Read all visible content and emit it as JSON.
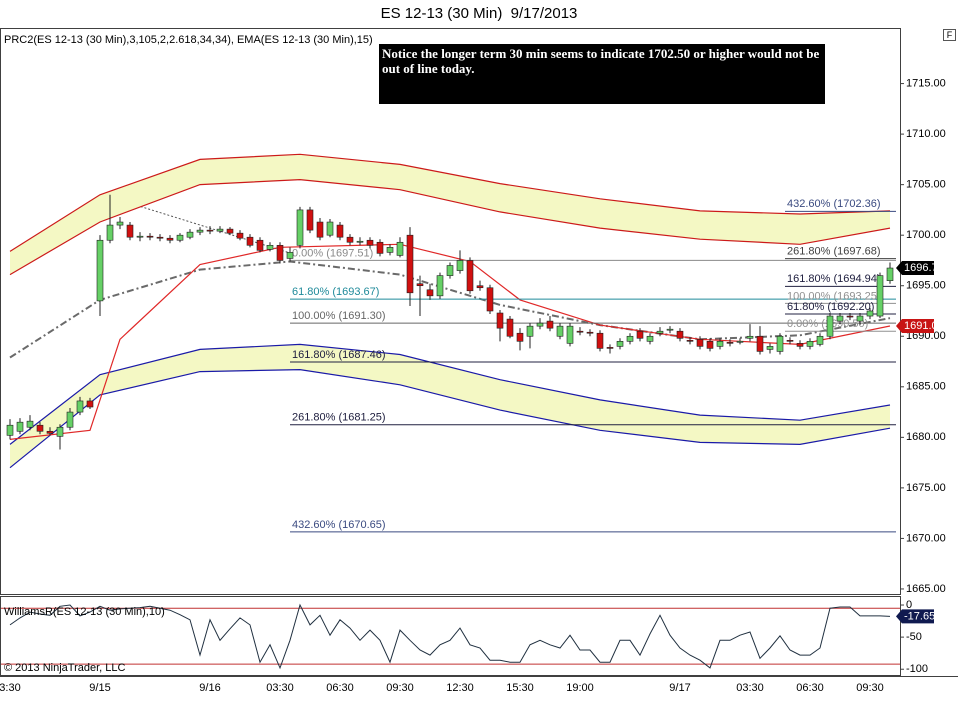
{
  "chart_data": {
    "type": "candlestick",
    "title": "ES 12-13 (30 Min)  9/17/2013",
    "indicator_label": "PRC2(ES 12-13 (30 Min),3,105,2,2.618,34,34), EMA(ES 12-13 (30 Min),15)",
    "annotation": "Notice the longer term 30 min seems to indicate 1702.50 or higher would not be out of line today.",
    "copyright": "© 2013 NinjaTrader, LLC",
    "corner_label": "F",
    "categories": [
      "3:30",
      null,
      null,
      null,
      null,
      null,
      null,
      null,
      null,
      "9/15",
      null,
      null,
      null,
      null,
      null,
      null,
      null,
      null,
      null,
      null,
      "9/16",
      null,
      null,
      null,
      null,
      null,
      null,
      "03:30",
      null,
      null,
      null,
      null,
      null,
      "06:30",
      null,
      null,
      null,
      null,
      null,
      "09:30",
      null,
      null,
      null,
      null,
      null,
      "12:30",
      null,
      null,
      null,
      null,
      null,
      "15:30",
      null,
      null,
      null,
      null,
      null,
      "19:00",
      null,
      null,
      null,
      null,
      null,
      null,
      null,
      null,
      null,
      "9/17",
      null,
      null,
      null,
      null,
      null,
      null,
      "03:30",
      null,
      null,
      null,
      null,
      null,
      "06:30",
      null,
      null,
      null,
      null,
      null,
      "09:30",
      null,
      null
    ],
    "ohlc": [
      [
        1680.2,
        1681.8,
        1679.8,
        1681.2
      ],
      [
        1680.6,
        1681.9,
        1680.3,
        1681.5
      ],
      [
        1681.0,
        1682.2,
        1680.7,
        1681.6
      ],
      [
        1681.2,
        1681.5,
        1680.3,
        1680.6
      ],
      [
        1680.6,
        1681.0,
        1680.2,
        1680.4
      ],
      [
        1680.1,
        1681.3,
        1678.8,
        1681.0
      ],
      [
        1681.0,
        1682.9,
        1680.7,
        1682.5
      ],
      [
        1682.5,
        1684.0,
        1682.2,
        1683.6
      ],
      [
        1683.6,
        1683.9,
        1682.8,
        1683.0
      ],
      [
        1693.5,
        1700.0,
        1692.0,
        1699.5
      ],
      [
        1699.5,
        1704.0,
        1699.2,
        1701.0
      ],
      [
        1701.0,
        1701.8,
        1700.6,
        1701.3
      ],
      [
        1701.0,
        1701.3,
        1699.5,
        1699.8
      ],
      [
        1699.8,
        1700.3,
        1699.4,
        1699.9
      ],
      [
        1699.9,
        1700.2,
        1699.5,
        1699.8
      ],
      [
        1699.8,
        1700.1,
        1699.4,
        1699.7
      ],
      [
        1699.7,
        1700.0,
        1699.2,
        1699.5
      ],
      [
        1699.5,
        1700.2,
        1699.3,
        1700.0
      ],
      [
        1699.8,
        1700.6,
        1699.6,
        1700.3
      ],
      [
        1700.3,
        1700.8,
        1700.0,
        1700.5
      ],
      [
        1700.5,
        1700.9,
        1700.1,
        1700.4
      ],
      [
        1700.4,
        1700.9,
        1700.2,
        1700.6
      ],
      [
        1700.6,
        1700.8,
        1700.0,
        1700.2
      ],
      [
        1700.2,
        1700.5,
        1699.5,
        1699.7
      ],
      [
        1699.8,
        1700.1,
        1698.8,
        1699.0
      ],
      [
        1699.5,
        1699.8,
        1698.3,
        1698.5
      ],
      [
        1698.6,
        1699.3,
        1698.4,
        1699.0
      ],
      [
        1699.0,
        1699.3,
        1697.2,
        1697.5
      ],
      [
        1697.7,
        1698.8,
        1697.4,
        1698.3
      ],
      [
        1699.0,
        1702.8,
        1698.7,
        1702.5
      ],
      [
        1702.5,
        1702.8,
        1700.2,
        1700.5
      ],
      [
        1701.3,
        1701.7,
        1699.5,
        1699.8
      ],
      [
        1700.0,
        1701.6,
        1699.8,
        1701.3
      ],
      [
        1701.0,
        1701.3,
        1699.5,
        1699.8
      ],
      [
        1699.8,
        1700.1,
        1699.0,
        1699.3
      ],
      [
        1699.3,
        1699.8,
        1699.0,
        1699.4
      ],
      [
        1699.5,
        1699.8,
        1698.7,
        1699.0
      ],
      [
        1699.3,
        1699.6,
        1697.9,
        1698.2
      ],
      [
        1698.3,
        1699.1,
        1698.0,
        1698.8
      ],
      [
        1698.0,
        1699.8,
        1697.8,
        1699.3
      ],
      [
        1700.0,
        1700.8,
        1693.0,
        1694.3
      ],
      [
        1695.2,
        1696.0,
        1692.0,
        1695.0
      ],
      [
        1694.6,
        1695.2,
        1693.6,
        1694.0
      ],
      [
        1694.0,
        1696.3,
        1693.7,
        1696.0
      ],
      [
        1696.0,
        1697.3,
        1695.7,
        1697.0
      ],
      [
        1696.5,
        1698.5,
        1696.2,
        1697.5
      ],
      [
        1697.5,
        1697.8,
        1694.2,
        1694.5
      ],
      [
        1695.0,
        1695.5,
        1694.5,
        1694.8
      ],
      [
        1694.8,
        1695.1,
        1692.2,
        1692.5
      ],
      [
        1692.3,
        1692.6,
        1689.5,
        1690.8
      ],
      [
        1691.7,
        1692.0,
        1689.8,
        1690.0
      ],
      [
        1690.3,
        1690.8,
        1688.6,
        1689.5
      ],
      [
        1690.0,
        1691.3,
        1688.8,
        1691.0
      ],
      [
        1691.0,
        1691.8,
        1690.7,
        1691.3
      ],
      [
        1691.5,
        1692.0,
        1690.5,
        1690.8
      ],
      [
        1690.0,
        1691.3,
        1689.7,
        1691.0
      ],
      [
        1689.3,
        1691.3,
        1689.0,
        1691.0
      ],
      [
        1690.5,
        1690.9,
        1690.1,
        1690.4
      ],
      [
        1690.4,
        1690.7,
        1690.0,
        1690.3
      ],
      [
        1690.3,
        1690.6,
        1688.5,
        1688.8
      ],
      [
        1688.9,
        1689.2,
        1688.3,
        1688.8
      ],
      [
        1689.0,
        1689.8,
        1688.7,
        1689.5
      ],
      [
        1689.5,
        1690.3,
        1689.2,
        1690.0
      ],
      [
        1690.5,
        1690.8,
        1689.5,
        1689.8
      ],
      [
        1689.5,
        1690.3,
        1689.2,
        1690.0
      ],
      [
        1690.3,
        1690.9,
        1690.0,
        1690.5
      ],
      [
        1690.6,
        1691.0,
        1690.3,
        1690.7
      ],
      [
        1690.5,
        1690.8,
        1689.5,
        1689.8
      ],
      [
        1689.6,
        1689.9,
        1689.2,
        1689.5
      ],
      [
        1689.7,
        1690.0,
        1688.7,
        1689.0
      ],
      [
        1689.5,
        1689.8,
        1688.5,
        1688.8
      ],
      [
        1689.0,
        1689.8,
        1688.7,
        1689.5
      ],
      [
        1689.4,
        1689.7,
        1689.0,
        1689.3
      ],
      [
        1689.4,
        1689.8,
        1689.2,
        1689.5
      ],
      [
        1689.8,
        1691.2,
        1689.5,
        1690.0
      ],
      [
        1690.0,
        1691.0,
        1688.2,
        1688.5
      ],
      [
        1688.7,
        1689.3,
        1688.3,
        1689.0
      ],
      [
        1688.5,
        1690.3,
        1688.2,
        1690.0
      ],
      [
        1689.6,
        1689.9,
        1689.2,
        1689.5
      ],
      [
        1689.3,
        1689.6,
        1688.7,
        1689.0
      ],
      [
        1689.0,
        1689.8,
        1688.7,
        1689.5
      ],
      [
        1689.2,
        1690.3,
        1689.0,
        1690.0
      ],
      [
        1690.0,
        1692.3,
        1689.7,
        1692.0
      ],
      [
        1691.5,
        1692.3,
        1691.2,
        1692.0
      ],
      [
        1692.0,
        1692.3,
        1691.6,
        1691.9
      ],
      [
        1691.5,
        1692.3,
        1691.2,
        1692.0
      ],
      [
        1692.0,
        1692.8,
        1691.7,
        1692.5
      ],
      [
        1692.0,
        1696.3,
        1691.8,
        1696.0
      ],
      [
        1695.5,
        1697.3,
        1695.2,
        1696.75
      ]
    ],
    "up_color": "#66d066",
    "down_color": "#d01010",
    "ylim": [
      1664.6,
      1720.3
    ],
    "yticks": [
      {
        "value": 1665,
        "label": "1665.00"
      },
      {
        "value": 1670,
        "label": "1670.00"
      },
      {
        "value": 1675,
        "label": "1675.00"
      },
      {
        "value": 1680,
        "label": "1680.00"
      },
      {
        "value": 1685,
        "label": "1685.00"
      },
      {
        "value": 1690,
        "label": "1690.00"
      },
      {
        "value": 1695,
        "label": "1695.00"
      },
      {
        "value": 1700,
        "label": "1700.00"
      },
      {
        "value": 1705,
        "label": "1705.00"
      },
      {
        "value": 1710,
        "label": "1710.00"
      },
      {
        "value": 1715,
        "label": "1715.00"
      }
    ],
    "bands": [
      {
        "color": "#cc1a1a",
        "fill": "#f4f8c4",
        "x": [
          0,
          9,
          19,
          29,
          39,
          49,
          59,
          69,
          79,
          88
        ],
        "upper": [
          1698.4,
          1704.0,
          1707.5,
          1708.0,
          1707.0,
          1705.1,
          1703.6,
          1702.4,
          1702.1,
          1702.4
        ],
        "lower": [
          1696.1,
          1701.3,
          1705.0,
          1705.5,
          1704.5,
          1702.3,
          1700.7,
          1699.6,
          1699.1,
          1700.7
        ]
      },
      {
        "color": "#1a1aa8",
        "fill": "#f4f8c4",
        "x": [
          0,
          9,
          19,
          29,
          39,
          49,
          59,
          69,
          79,
          88
        ],
        "upper": [
          1679.3,
          1686.2,
          1688.7,
          1689.2,
          1688.2,
          1685.7,
          1683.7,
          1682.2,
          1681.7,
          1683.2
        ],
        "lower": [
          1677.0,
          1684.2,
          1686.5,
          1686.7,
          1685.2,
          1682.7,
          1680.7,
          1679.5,
          1679.3,
          1680.9
        ]
      }
    ],
    "lines": [
      {
        "color": "#6a6a6a",
        "dashed": true,
        "x": [
          0,
          9,
          19,
          28,
          39,
          49,
          59,
          69,
          79,
          88
        ],
        "values": [
          1687.9,
          1693.6,
          1696.6,
          1697.4,
          1696.1,
          1693.1,
          1691.1,
          1689.7,
          1690.1,
          1691.8
        ]
      },
      {
        "color": "#e02828",
        "dashed": false,
        "x": [
          0,
          8,
          11,
          19,
          27,
          39,
          46,
          51,
          59,
          69,
          79,
          88
        ],
        "values": [
          1679.8,
          1680.7,
          1689.7,
          1697.1,
          1698.8,
          1699.1,
          1697.4,
          1693.6,
          1691.1,
          1689.7,
          1689.2,
          1691.02
        ]
      }
    ],
    "fib_sets": [
      {
        "start": 28,
        "levels": [
          {
            "label": "0.00% (1697.51)",
            "value": 1697.51,
            "color": "#8a8a8a"
          },
          {
            "label": "61.80% (1693.67)",
            "value": 1693.67,
            "color": "#1f8a9a"
          },
          {
            "label": "100.00% (1691.30)",
            "value": 1691.3,
            "color": "#666666"
          },
          {
            "label": "161.80% (1687.46)",
            "value": 1687.46,
            "color": "#202040"
          },
          {
            "label": "261.80% (1681.25)",
            "value": 1681.25,
            "color": "#202040"
          },
          {
            "label": "432.60% (1670.65)",
            "value": 1670.65,
            "color": "#3a4a80"
          }
        ]
      },
      {
        "start": 77.5,
        "levels": [
          {
            "label": "432.60% (1702.36)",
            "value": 1702.36,
            "color": "#3a4a80"
          },
          {
            "label": "261.80% (1697.68)",
            "value": 1697.68,
            "color": "#404040"
          },
          {
            "label": "161.80% (1694.94)",
            "value": 1694.94,
            "color": "#202040"
          },
          {
            "label": "100.00% (1693.25)",
            "value": 1693.25,
            "color": "#909090"
          },
          {
            "label": "61.80% (1692.20)",
            "value": 1692.2,
            "color": "#202040"
          },
          {
            "label": "0.00% (1690.50)",
            "value": 1690.5,
            "color": "#909090"
          }
        ]
      }
    ],
    "williams_r": {
      "label": "WilliamsR(ES 12-13 (30 Min),10)",
      "color": "#203040",
      "values": [
        -31,
        -20,
        -11,
        -14,
        -16,
        -2,
        0,
        -17,
        -11,
        -2,
        -8,
        -6,
        -5,
        -4,
        -2,
        -5,
        -8,
        -15,
        -23,
        -78,
        -23,
        -55,
        -37,
        -20,
        -31,
        -89,
        -62,
        -98,
        -55,
        0,
        -31,
        -16,
        -47,
        -23,
        -36,
        -55,
        -39,
        -55,
        -89,
        -39,
        -55,
        -70,
        -78,
        -62,
        -55,
        -36,
        -62,
        -67,
        -86,
        -86,
        -89,
        -89,
        -62,
        -55,
        -62,
        -67,
        -47,
        -70,
        -70,
        -89,
        -89,
        -55,
        -55,
        -78,
        -45,
        -16,
        -47,
        -67,
        -78,
        -86,
        -98,
        -55,
        -55,
        -47,
        -42,
        -83,
        -67,
        -48,
        -70,
        -78,
        -78,
        -67,
        -5,
        -3,
        -3,
        -17,
        -17,
        -17,
        -17.65
      ],
      "ylim": [
        -109,
        12.5
      ],
      "yticks": [
        0,
        -50,
        -100
      ],
      "levels": [
        -5,
        -92
      ],
      "level_color": "#c03030"
    }
  }
}
